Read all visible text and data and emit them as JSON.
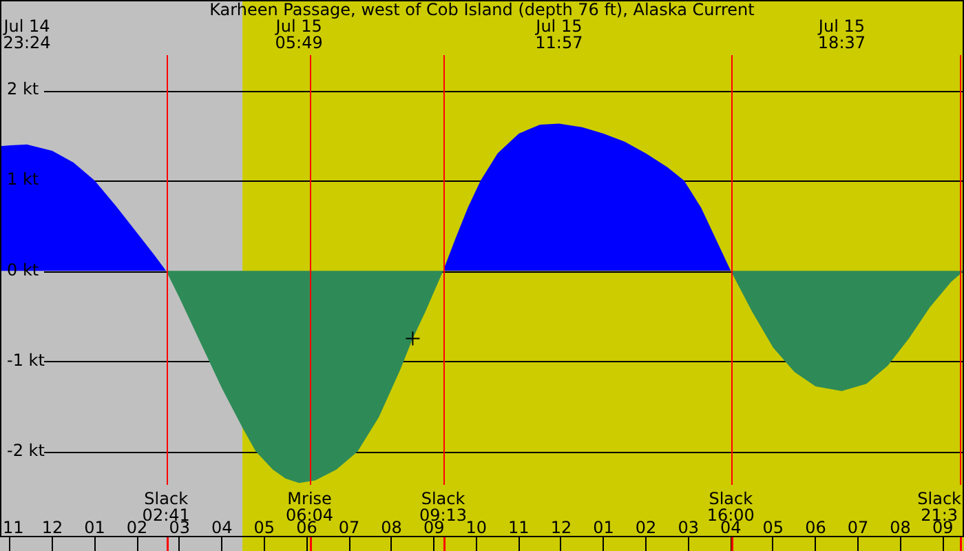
{
  "chart_data": {
    "type": "area",
    "title": "Karheen Passage, west of Cob Island (depth 76 ft), Alaska Current",
    "x": [
      "--07-14T22:46",
      "--07-14T23:00",
      "--07-14T23:24",
      "--07-15T00:00",
      "--07-15T00:30",
      "--07-15T01:00",
      "--07-15T01:30",
      "--07-15T02:00",
      "--07-15T02:24",
      "--07-15T02:41",
      "--07-15T03:00",
      "--07-15T03:30",
      "--07-15T04:00",
      "--07-15T04:30",
      "--07-15T04:48",
      "--07-15T05:12",
      "--07-15T05:30",
      "--07-15T05:49",
      "--07-15T06:12",
      "--07-15T06:42",
      "--07-15T07:12",
      "--07-15T07:42",
      "--07-15T08:12",
      "--07-15T08:30",
      "--07-15T08:48",
      "--07-15T09:13",
      "--07-15T09:30",
      "--07-15T09:48",
      "--07-15T10:06",
      "--07-15T10:30",
      "--07-15T11:00",
      "--07-15T11:30",
      "--07-15T11:57",
      "--07-15T12:30",
      "--07-15T13:00",
      "--07-15T13:30",
      "--07-15T14:00",
      "--07-15T14:30",
      "--07-15T14:54",
      "--07-15T15:18",
      "--07-15T15:36",
      "--07-15T16:00",
      "--07-15T16:30",
      "--07-15T17:00",
      "--07-15T17:30",
      "--07-15T18:00",
      "--07-15T18:37",
      "--07-15T19:12",
      "--07-15T19:42",
      "--07-15T20:12",
      "--07-15T20:42",
      "--07-15T21:12",
      "--07-15T21:30"
    ],
    "series": [
      {
        "color": "#0000ff",
        "values": [
          1.38,
          1.39,
          1.4,
          1.33,
          1.2,
          1.0,
          0.72,
          0.42,
          0.18,
          0,
          null,
          null,
          null,
          null,
          null,
          null,
          null,
          null,
          null,
          null,
          null,
          null,
          null,
          null,
          null,
          0,
          0.35,
          0.7,
          1.0,
          1.3,
          1.52,
          1.62,
          1.63,
          1.59,
          1.52,
          1.43,
          1.3,
          1.15,
          1.0,
          0.7,
          0.4,
          0,
          null,
          null,
          null,
          null,
          null,
          null,
          null,
          null,
          null,
          null,
          null
        ]
      },
      {
        "color": "#2e8b57",
        "values": [
          null,
          null,
          null,
          null,
          null,
          null,
          null,
          null,
          null,
          0,
          -0.3,
          -0.8,
          -1.3,
          -1.75,
          -2.0,
          -2.2,
          -2.3,
          -2.35,
          -2.32,
          -2.2,
          -2.0,
          -1.62,
          -1.1,
          -0.75,
          -0.45,
          0,
          null,
          null,
          null,
          null,
          null,
          null,
          null,
          null,
          null,
          null,
          null,
          null,
          null,
          null,
          null,
          0,
          -0.45,
          -0.85,
          -1.12,
          -1.28,
          -1.33,
          -1.25,
          -1.05,
          -0.75,
          -0.4,
          -0.12,
          0
        ]
      },
      {
        "type": "scatter",
        "color": "#000000",
        "marker": "cross",
        "x": [
          "--07-15T08:30"
        ],
        "values": [
          -0.75
        ]
      }
    ],
    "xlim": [
      "--07-14T22:46",
      "--07-15T21:30"
    ],
    "xticks": [
      {
        "value": "--07-14T23:00",
        "label": "11"
      },
      {
        "value": "--07-15T00:00",
        "label": "12"
      },
      {
        "value": "--07-15T01:00",
        "label": "01"
      },
      {
        "value": "--07-15T02:00",
        "label": "02"
      },
      {
        "value": "--07-15T03:00",
        "label": "03"
      },
      {
        "value": "--07-15T04:00",
        "label": "04"
      },
      {
        "value": "--07-15T05:00",
        "label": "05"
      },
      {
        "value": "--07-15T06:00",
        "label": "06"
      },
      {
        "value": "--07-15T07:00",
        "label": "07"
      },
      {
        "value": "--07-15T08:00",
        "label": "08"
      },
      {
        "value": "--07-15T09:00",
        "label": "09"
      },
      {
        "value": "--07-15T10:00",
        "label": "10"
      },
      {
        "value": "--07-15T11:00",
        "label": "11"
      },
      {
        "value": "--07-15T12:00",
        "label": "12"
      },
      {
        "value": "--07-15T13:00",
        "label": "01"
      },
      {
        "value": "--07-15T14:00",
        "label": "02"
      },
      {
        "value": "--07-15T15:00",
        "label": "03"
      },
      {
        "value": "--07-15T16:00",
        "label": "04"
      },
      {
        "value": "--07-15T17:00",
        "label": "05"
      },
      {
        "value": "--07-15T18:00",
        "label": "06"
      },
      {
        "value": "--07-15T19:00",
        "label": "07"
      },
      {
        "value": "--07-15T20:00",
        "label": "08"
      },
      {
        "value": "--07-15T21:00",
        "label": "09"
      }
    ],
    "x2lim": [
      "--07-14T22:46",
      "--07-15T21:30"
    ],
    "x2ticks": [
      {
        "value": "--07-14T23:24",
        "label": "Jul 14\n23:24"
      },
      {
        "value": "--07-15T05:49",
        "label": "Jul 15\n05:49"
      },
      {
        "value": "--07-15T11:57",
        "label": "Jul 15\n11:57"
      },
      {
        "value": "--07-15T18:37",
        "label": "Jul 15\n18:37"
      }
    ],
    "ylim": [
      -2.95,
      3.0
    ],
    "yticks": [
      {
        "value": 2,
        "label": "2 kt"
      },
      {
        "value": 1,
        "label": "1 kt"
      },
      {
        "value": 0,
        "label": "0 kt"
      },
      {
        "value": -1,
        "label": "-1 kt"
      },
      {
        "value": -2,
        "label": "-2 kt"
      }
    ],
    "grid": "y",
    "legend": false,
    "bands": [
      {
        "axis": "x",
        "from": "--07-14T22:46",
        "to": "--07-15T04:29",
        "color": "#c0c0c0"
      },
      {
        "axis": "x",
        "from": "--07-15T04:29",
        "to": "--07-15T21:30",
        "color": "#cccc00"
      }
    ],
    "ref_lines": [
      {
        "axis": "x",
        "value": "--07-15T02:41",
        "label": "Slack\n02:41",
        "color": "#ff0000"
      },
      {
        "axis": "x",
        "value": "--07-15T06:04",
        "label": "Mrise\n06:04",
        "color": "#ff0000"
      },
      {
        "axis": "x",
        "value": "--07-15T09:13",
        "label": "Slack\n09:13",
        "color": "#ff0000"
      },
      {
        "axis": "x",
        "value": "--07-15T16:00",
        "label": "Slack\n16:00",
        "color": "#ff0000"
      },
      {
        "axis": "x",
        "value": "--07-15T21:30",
        "label": "Slack\n21:3",
        "color": "#ff0000"
      }
    ]
  }
}
